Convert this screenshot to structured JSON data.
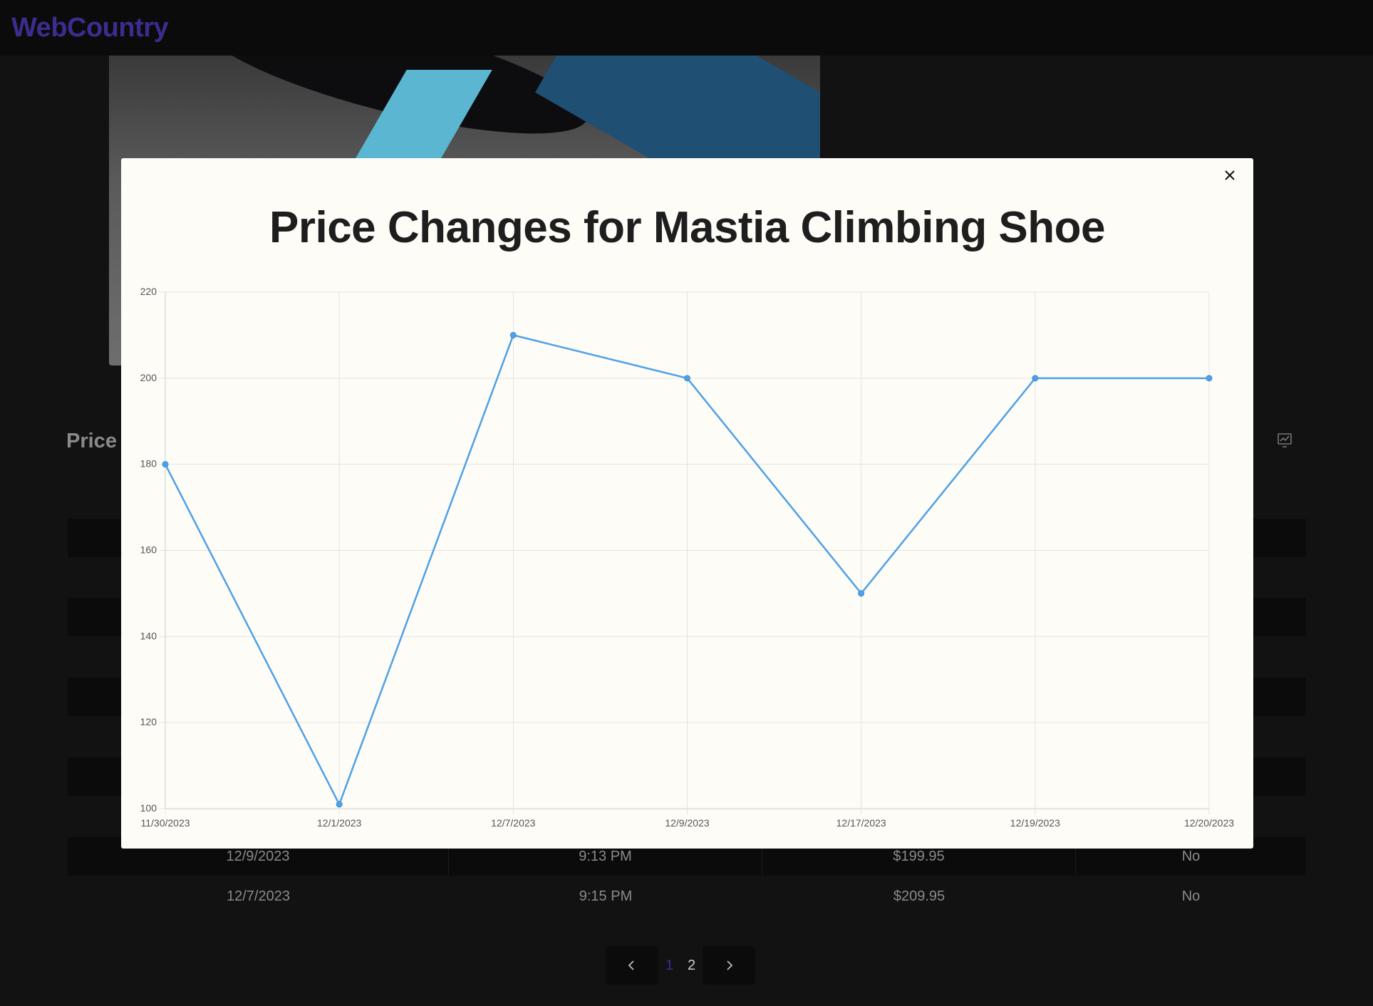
{
  "brand": {
    "name": "WebCountry",
    "color": "#3b2d8f"
  },
  "section": {
    "title": "Price"
  },
  "table": {
    "visible_rows": [
      {
        "date": "12/9/2023",
        "time": "9:13 PM",
        "price": "$199.95",
        "flag": "No"
      },
      {
        "date": "12/7/2023",
        "time": "9:15 PM",
        "price": "$209.95",
        "flag": "No"
      }
    ]
  },
  "pagination": {
    "pages": [
      "1",
      "2"
    ],
    "current": "1",
    "active_color": "#3b2d8f",
    "inactive_color": "#cfcfcf"
  },
  "modal": {
    "title": "Price Changes for Mastia Climbing Shoe"
  },
  "chart_data": {
    "type": "line",
    "title": "Price Changes for Mastia Climbing Shoe",
    "categories": [
      "11/30/2023",
      "12/1/2023",
      "12/7/2023",
      "12/9/2023",
      "12/17/2023",
      "12/19/2023",
      "12/20/2023"
    ],
    "series": [
      {
        "values": [
          180,
          101,
          210,
          200,
          150,
          200,
          200
        ],
        "color": "#4ea1e6"
      }
    ],
    "yticks": [
      100,
      120,
      140,
      160,
      180,
      200,
      220
    ],
    "ylim": [
      100,
      220
    ],
    "grid": true,
    "xlabel": "",
    "ylabel": ""
  }
}
